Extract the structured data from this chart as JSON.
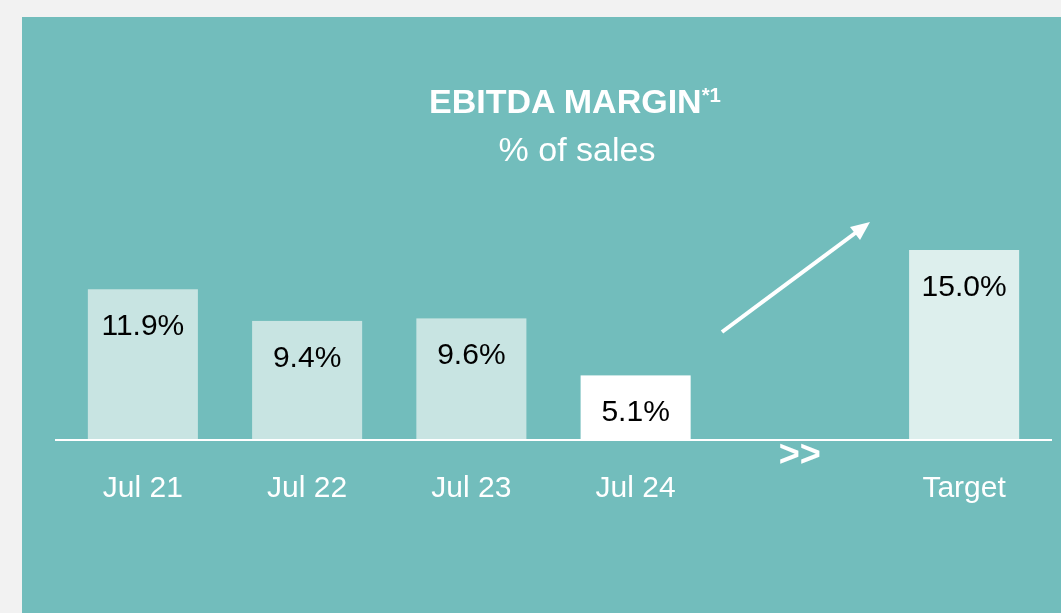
{
  "chart_data": {
    "type": "bar",
    "title": "EBITDA MARGIN$^{*1}$",
    "subtitle": "% of sales",
    "categories": [
      "Jul 21",
      "Jul 22",
      "Jul 23",
      "Jul 24",
      null,
      "Target"
    ],
    "values": [
      11.9,
      9.4,
      9.6,
      5.1,
      null,
      15.0
    ],
    "colors": [
      "#c8e4e2",
      "#c8e4e2",
      "#c8e4e2",
      "#ffffff",
      null,
      "#ddefed"
    ],
    "value_labels": [
      "11.9%",
      "9.4%",
      "9.6%",
      "5.1%",
      null,
      "15.0%"
    ],
    "annotations": [
      ">>"
    ]
  }
}
